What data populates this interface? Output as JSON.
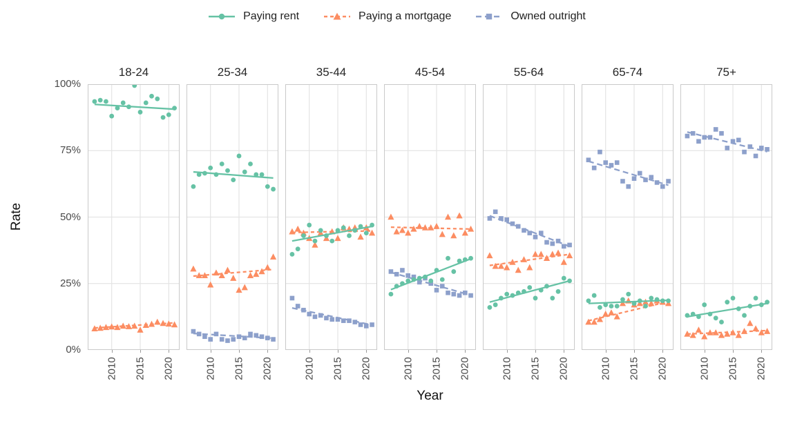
{
  "chart_data": {
    "type": "scatter",
    "title": "",
    "xlabel": "Year",
    "ylabel": "Rate",
    "legend_position": "top",
    "grid": true,
    "grid_color": "#e4e4e4",
    "border_color": "#c9c9c9",
    "x_ticks": [
      2010,
      2015,
      2020
    ],
    "x_tick_labels": [
      "2010",
      "2015",
      "2020"
    ],
    "y_ticks": [
      100,
      75,
      50,
      25,
      0
    ],
    "y_tick_labels": [
      "100%",
      "75%",
      "50%",
      "25%",
      "0%"
    ],
    "ylim": [
      0,
      100
    ],
    "xlim": [
      2005.8,
      2021.9
    ],
    "years": [
      2007,
      2008,
      2009,
      2010,
      2011,
      2012,
      2013,
      2014,
      2015,
      2016,
      2017,
      2018,
      2019,
      2020,
      2021
    ],
    "series_meta": [
      {
        "key": "rent",
        "name": "Paying rent",
        "color": "#66c2a5",
        "marker": "circle",
        "line": "solid",
        "dash": ""
      },
      {
        "key": "mortgage",
        "name": "Paying a mortgage",
        "color": "#fc8d62",
        "marker": "triangle",
        "line": "dashed",
        "dash": "5 4"
      },
      {
        "key": "owned",
        "name": "Owned outright",
        "color": "#8da0cb",
        "marker": "square",
        "line": "dashed",
        "dash": "8 5"
      }
    ],
    "facets": [
      {
        "label": "18-24",
        "series": {
          "rent": {
            "values": [
              93.5,
              94,
              93.5,
              88,
              91,
              93,
              91.5,
              99.5,
              89.5,
              93,
              95.5,
              94.5,
              87.5,
              88.5,
              91
            ],
            "trend": [
              92.4,
              90.6
            ]
          },
          "mortgage": {
            "values": [
              8,
              8.2,
              8.5,
              8.7,
              8.5,
              9,
              8.8,
              9,
              7.5,
              9.3,
              9.7,
              10.5,
              10,
              9.8,
              9.5
            ],
            "trend": [
              8.3,
              10.2
            ]
          }
        }
      },
      {
        "label": "25-34",
        "series": {
          "rent": {
            "values": [
              61.5,
              66,
              66.5,
              68.5,
              66,
              70,
              67.5,
              64,
              73,
              67,
              70,
              66,
              66,
              61.5,
              60.5
            ],
            "trend": [
              67,
              64.7
            ]
          },
          "mortgage": {
            "values": [
              30.5,
              28,
              28,
              24.5,
              29,
              28,
              30,
              27,
              22.5,
              23.5,
              28,
              28.5,
              29.5,
              31,
              35
            ],
            "trend": [
              27.8,
              30.3
            ]
          },
          "owned": {
            "values": [
              7,
              6,
              5,
              4,
              6,
              4,
              3.5,
              4,
              5,
              4.5,
              6,
              5.5,
              5,
              4.5,
              4
            ],
            "trend": [
              6.2,
              4.4
            ]
          }
        }
      },
      {
        "label": "35-44",
        "series": {
          "rent": {
            "values": [
              36,
              38,
              43,
              47,
              41,
              45,
              43,
              41,
              45,
              46,
              43,
              45,
              46.5,
              44,
              47
            ],
            "trend": [
              41,
              46.5
            ]
          },
          "mortgage": {
            "values": [
              44.5,
              45.5,
              44,
              42,
              39.5,
              44,
              42,
              44.5,
              42,
              46,
              45.5,
              46,
              42.5,
              46,
              44
            ],
            "trend": [
              44.2,
              44.8
            ]
          },
          "owned": {
            "values": [
              19.5,
              16.5,
              15,
              13.5,
              12.5,
              13,
              12,
              11.5,
              11.5,
              11,
              11,
              10.5,
              9.5,
              9,
              9.5
            ],
            "trend": [
              15.8,
              9.4
            ]
          }
        }
      },
      {
        "label": "45-54",
        "series": {
          "rent": {
            "values": [
              21,
              24,
              25,
              26,
              26.5,
              27,
              27.5,
              26,
              30,
              26.5,
              34.5,
              29.5,
              33.5,
              34,
              34.5
            ],
            "trend": [
              22.7,
              34.3
            ]
          },
          "mortgage": {
            "values": [
              50,
              44.5,
              45,
              44,
              45.5,
              46.5,
              46,
              46,
              46.5,
              43.5,
              50,
              43,
              50.5,
              44,
              45.5
            ],
            "trend": [
              46.2,
              45.5
            ]
          },
          "owned": {
            "values": [
              29.5,
              28.5,
              30,
              28,
              27.5,
              25.5,
              27,
              25,
              22.5,
              24,
              21.5,
              21,
              20.5,
              21.5,
              20.5
            ],
            "trend": [
              29.2,
              20.6
            ]
          }
        }
      },
      {
        "label": "55-64",
        "series": {
          "rent": {
            "values": [
              16,
              17,
              19.5,
              21,
              20.5,
              21.5,
              22,
              23.5,
              19.5,
              22.5,
              24,
              19.5,
              22,
              27,
              26
            ],
            "trend": [
              18,
              26
            ]
          },
          "mortgage": {
            "values": [
              35.5,
              31.5,
              31.5,
              31,
              33,
              30,
              34,
              31,
              36,
              36,
              34.5,
              36,
              36.5,
              33,
              35.5
            ],
            "trend": [
              31.8,
              36
            ]
          },
          "owned": {
            "values": [
              49.5,
              52,
              49.5,
              49,
              47.5,
              46.5,
              45,
              44,
              42.5,
              44,
              40.5,
              40,
              41,
              39,
              39.5
            ],
            "trend": [
              50.5,
              39
            ]
          }
        }
      },
      {
        "label": "65-74",
        "series": {
          "rent": {
            "values": [
              18.5,
              20.5,
              16,
              17,
              16.5,
              16.5,
              19,
              21,
              17.5,
              18.5,
              16.5,
              19.5,
              19,
              18.5,
              18.5
            ],
            "trend": [
              17.5,
              18.7
            ]
          },
          "mortgage": {
            "values": [
              10.5,
              10.5,
              11.5,
              13.5,
              14,
              12.5,
              17.5,
              18.5,
              17,
              17.5,
              18,
              17.5,
              18.5,
              18,
              17.5
            ],
            "trend": [
              11,
              18.2
            ]
          },
          "owned": {
            "values": [
              71.5,
              68.5,
              74.5,
              70.5,
              69.5,
              70.5,
              63.5,
              61.5,
              64.5,
              66.5,
              64,
              65,
              63,
              61.5,
              63.5
            ],
            "trend": [
              71,
              62
            ]
          }
        }
      },
      {
        "label": "75+",
        "series": {
          "rent": {
            "values": [
              13,
              13.5,
              12.5,
              17,
              13.5,
              12,
              10.5,
              18,
              19.5,
              15.5,
              13,
              16.5,
              19.5,
              17,
              18
            ],
            "trend": [
              12.5,
              17.5
            ]
          },
          "mortgage": {
            "values": [
              6,
              5.5,
              7.5,
              5,
              6.5,
              6.5,
              5.5,
              6,
              6.5,
              5.5,
              7,
              10,
              8,
              6.5,
              7
            ],
            "trend": [
              6,
              7.3
            ]
          },
          "owned": {
            "values": [
              80.5,
              81.5,
              78.5,
              80,
              80,
              83,
              81.5,
              76,
              78.5,
              79,
              74.5,
              76.5,
              73,
              76,
              75.5
            ],
            "trend": [
              82,
              74.6
            ]
          }
        }
      }
    ]
  }
}
